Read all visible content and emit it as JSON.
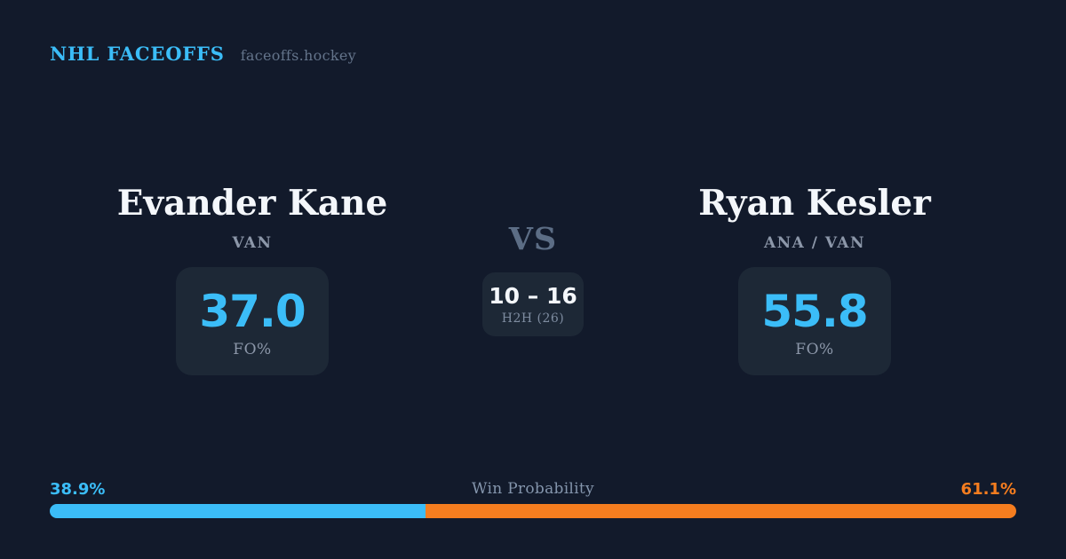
{
  "header": {
    "brand": "NHL FACEOFFS",
    "site": "faceoffs.hockey"
  },
  "left_player": {
    "name": "Evander Kane",
    "team": "VAN",
    "stat_value": "37.0",
    "stat_label": "FO%"
  },
  "versus": {
    "label": "VS",
    "h2h_score": "10 – 16",
    "h2h_sub": "H2H (26)"
  },
  "right_player": {
    "name": "Ryan Kesler",
    "team": "ANA / VAN",
    "stat_value": "55.8",
    "stat_label": "FO%"
  },
  "win_probability": {
    "title": "Win Probability",
    "left_label": "38.9%",
    "right_label": "61.1%",
    "left_value": 38.9,
    "right_value": 61.1
  },
  "colors": {
    "background": "#121a2b",
    "card": "#1d2836",
    "accent_blue": "#3bbdf8",
    "accent_orange": "#f57d1f",
    "text_primary": "#f4f7fb",
    "text_muted": "#8c97a9",
    "text_faint": "#7e8ca0",
    "vs_color": "#5c6d85"
  }
}
